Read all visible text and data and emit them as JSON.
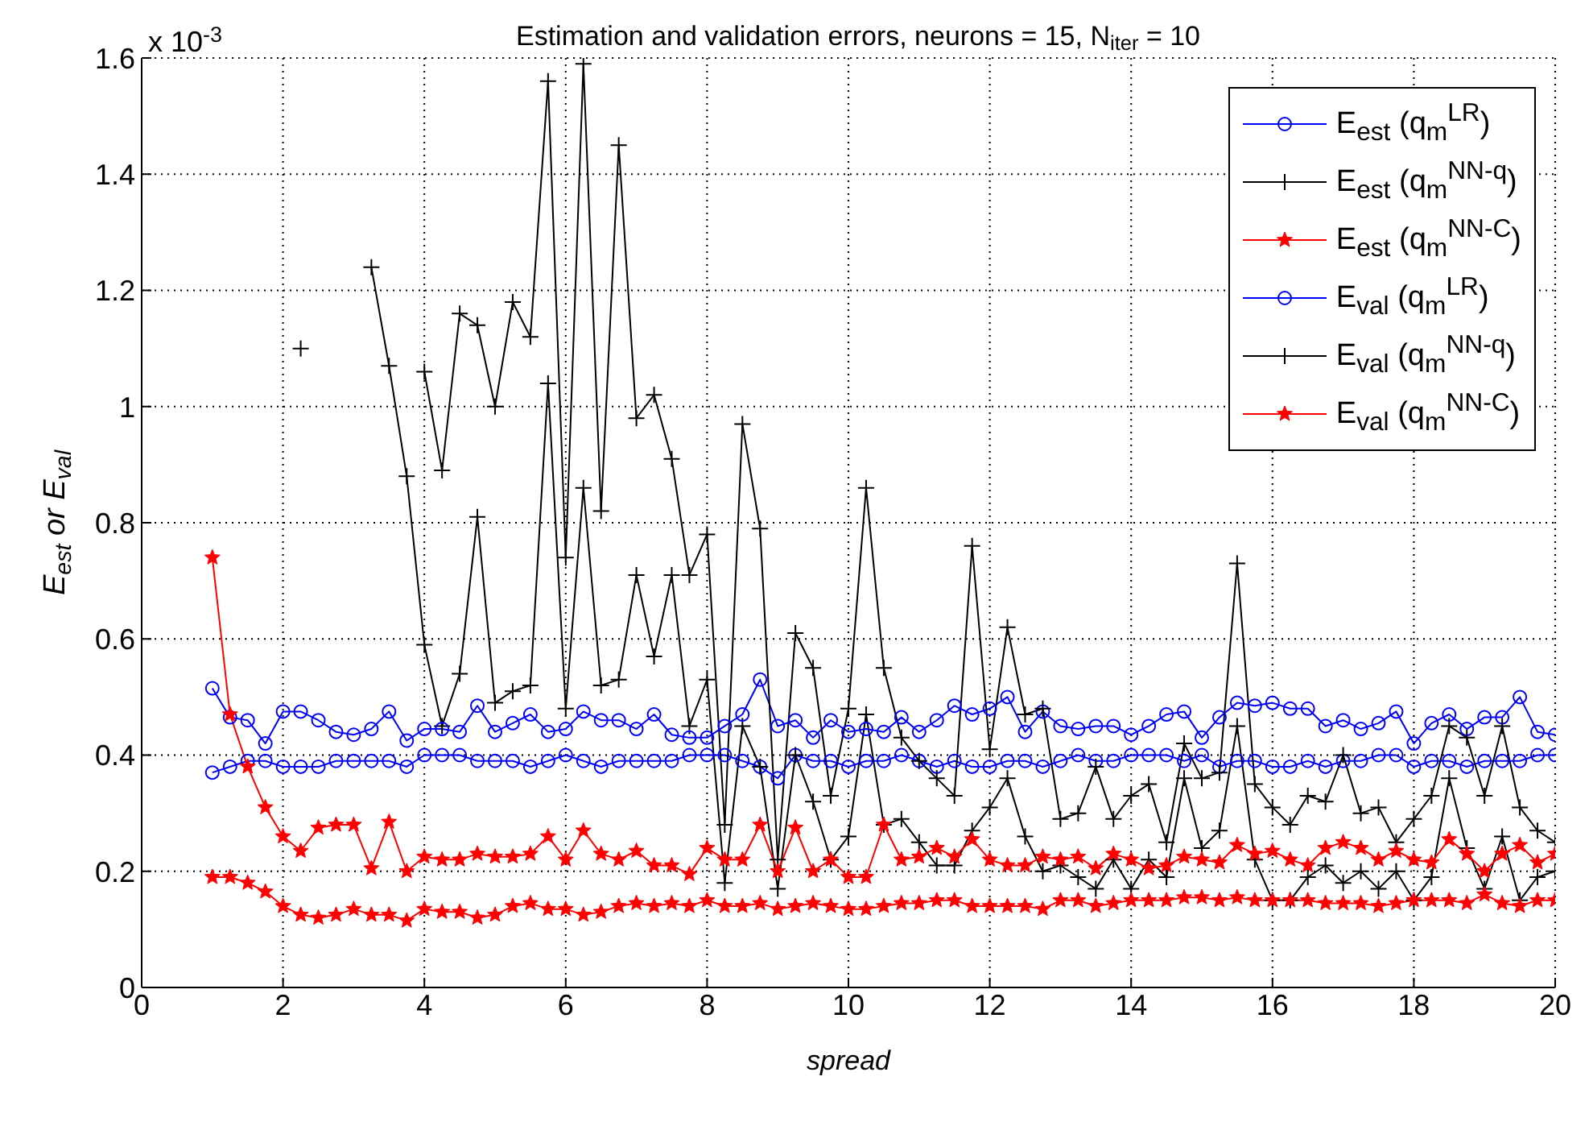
{
  "chart_data": {
    "type": "line",
    "title": "Estimation and validation errors, neurons = 15, N$_{iter}$ = 10",
    "xlabel": "spread",
    "ylabel": "E$_{est}$  or  E$_{val}$",
    "annotations": [
      "x 10$^{-3}$"
    ],
    "x": [
      1,
      1.25,
      1.5,
      1.75,
      2,
      2.25,
      2.5,
      2.75,
      3,
      3.25,
      3.5,
      3.75,
      4,
      4.25,
      4.5,
      4.75,
      5,
      5.25,
      5.5,
      5.75,
      6,
      6.25,
      6.5,
      6.75,
      7,
      7.25,
      7.5,
      7.75,
      8,
      8.25,
      8.5,
      8.75,
      9,
      9.25,
      9.5,
      9.75,
      10,
      10.25,
      10.5,
      10.75,
      11,
      11.25,
      11.5,
      11.75,
      12,
      12.25,
      12.5,
      12.75,
      13,
      13.25,
      13.5,
      13.75,
      14,
      14.25,
      14.5,
      14.75,
      15,
      15.25,
      15.5,
      15.75,
      16,
      16.25,
      16.5,
      16.75,
      17,
      17.25,
      17.5,
      17.75,
      18,
      18.25,
      18.5,
      18.75,
      19,
      19.25,
      19.5,
      19.75,
      20
    ],
    "xlim": [
      0,
      20
    ],
    "xticks": [
      0,
      2,
      4,
      6,
      8,
      10,
      12,
      14,
      16,
      18,
      20
    ],
    "ylim": [
      0,
      1.6
    ],
    "yticks": [
      0,
      0.2,
      0.4,
      0.6,
      0.8,
      1,
      1.2,
      1.4,
      1.6
    ],
    "grid": true,
    "legend": "top right",
    "series": [
      {
        "name": "E$_{est}$ (q$_{m}$$^{LR}$)",
        "color": "#0000ff",
        "marker": "circle",
        "values": [
          0.37,
          0.38,
          0.39,
          0.39,
          0.38,
          0.38,
          0.38,
          0.39,
          0.39,
          0.39,
          0.39,
          0.38,
          0.4,
          0.4,
          0.4,
          0.39,
          0.39,
          0.39,
          0.38,
          0.39,
          0.4,
          0.39,
          0.38,
          0.39,
          0.39,
          0.39,
          0.39,
          0.4,
          0.4,
          0.4,
          0.39,
          0.38,
          0.36,
          0.4,
          0.39,
          0.39,
          0.38,
          0.39,
          0.39,
          0.4,
          0.39,
          0.38,
          0.39,
          0.38,
          0.38,
          0.39,
          0.39,
          0.38,
          0.39,
          0.4,
          0.39,
          0.39,
          0.4,
          0.4,
          0.4,
          0.39,
          0.4,
          0.38,
          0.39,
          0.39,
          0.38,
          0.38,
          0.39,
          0.38,
          0.39,
          0.39,
          0.4,
          0.4,
          0.38,
          0.39,
          0.39,
          0.38,
          0.39,
          0.39,
          0.39,
          0.4,
          0.4
        ]
      },
      {
        "name": "E$_{est}$ (q$_{m}$$^{NN-q}$)",
        "color": "#000000",
        "marker": "cross",
        "values": [
          null,
          null,
          null,
          null,
          null,
          1.1,
          null,
          null,
          null,
          1.24,
          1.07,
          0.88,
          0.59,
          0.45,
          0.54,
          0.81,
          0.49,
          0.51,
          0.52,
          1.04,
          0.48,
          0.86,
          0.52,
          0.53,
          0.71,
          0.57,
          0.71,
          0.45,
          0.53,
          0.18,
          0.45,
          0.38,
          0.17,
          0.4,
          0.32,
          0.22,
          0.26,
          0.47,
          0.28,
          0.29,
          0.25,
          0.21,
          0.21,
          0.27,
          0.31,
          0.36,
          0.26,
          0.2,
          0.21,
          0.19,
          0.17,
          0.22,
          0.17,
          0.22,
          0.19,
          0.36,
          0.24,
          0.27,
          0.45,
          0.22,
          0.15,
          0.15,
          0.19,
          0.21,
          0.18,
          0.2,
          0.17,
          0.2,
          0.15,
          0.19,
          0.36,
          0.24,
          0.17,
          0.26,
          0.15,
          0.19,
          0.2
        ]
      },
      {
        "name": "E$_{est}$ (q$_{m}$$^{NN-C}$)",
        "color": "#ff0000",
        "marker": "star",
        "values": [
          0.19,
          0.19,
          0.18,
          0.165,
          0.14,
          0.125,
          0.12,
          0.125,
          0.135,
          0.125,
          0.125,
          0.115,
          0.135,
          0.13,
          0.13,
          0.12,
          0.125,
          0.14,
          0.145,
          0.135,
          0.135,
          0.125,
          0.13,
          0.14,
          0.145,
          0.14,
          0.145,
          0.14,
          0.15,
          0.14,
          0.14,
          0.145,
          0.135,
          0.14,
          0.145,
          0.14,
          0.135,
          0.135,
          0.14,
          0.145,
          0.145,
          0.15,
          0.15,
          0.14,
          0.14,
          0.14,
          0.14,
          0.135,
          0.15,
          0.15,
          0.14,
          0.145,
          0.15,
          0.15,
          0.15,
          0.155,
          0.155,
          0.15,
          0.155,
          0.15,
          0.15,
          0.15,
          0.15,
          0.145,
          0.145,
          0.145,
          0.14,
          0.145,
          0.15,
          0.15,
          0.15,
          0.145,
          0.16,
          0.145,
          0.14,
          0.15,
          0.15
        ]
      },
      {
        "name": "E$_{val}$ (q$_{m}$$^{LR}$)",
        "color": "#0000ff",
        "marker": "circle",
        "values": [
          0.515,
          0.465,
          0.46,
          0.42,
          0.475,
          0.475,
          0.46,
          0.44,
          0.435,
          0.445,
          0.475,
          0.425,
          0.445,
          0.445,
          0.44,
          0.485,
          0.44,
          0.455,
          0.47,
          0.44,
          0.445,
          0.475,
          0.46,
          0.46,
          0.445,
          0.47,
          0.435,
          0.43,
          0.43,
          0.45,
          0.47,
          0.53,
          0.45,
          0.46,
          0.43,
          0.46,
          0.44,
          0.445,
          0.44,
          0.465,
          0.44,
          0.46,
          0.485,
          0.47,
          0.48,
          0.5,
          0.44,
          0.475,
          0.45,
          0.445,
          0.45,
          0.45,
          0.435,
          0.45,
          0.47,
          0.475,
          0.43,
          0.465,
          0.49,
          0.485,
          0.49,
          0.48,
          0.48,
          0.45,
          0.46,
          0.445,
          0.455,
          0.475,
          0.42,
          0.455,
          0.47,
          0.445,
          0.465,
          0.465,
          0.5,
          0.44,
          0.435
        ]
      },
      {
        "name": "E$_{val}$ (q$_{m}$$^{NN-q}$)",
        "color": "#000000",
        "marker": "cross",
        "values": [
          null,
          null,
          null,
          null,
          null,
          null,
          null,
          null,
          null,
          null,
          null,
          null,
          1.06,
          0.89,
          1.16,
          1.14,
          1.0,
          1.18,
          1.12,
          1.56,
          0.74,
          1.59,
          0.82,
          1.45,
          0.98,
          1.02,
          0.91,
          0.71,
          0.78,
          0.28,
          0.97,
          0.79,
          0.22,
          0.61,
          0.55,
          0.33,
          0.48,
          0.86,
          0.55,
          0.43,
          0.39,
          0.36,
          0.33,
          0.76,
          0.41,
          0.62,
          0.47,
          0.48,
          0.29,
          0.3,
          0.38,
          0.29,
          0.33,
          0.35,
          0.25,
          0.42,
          0.36,
          0.37,
          0.73,
          0.35,
          0.31,
          0.28,
          0.33,
          0.32,
          0.4,
          0.3,
          0.31,
          0.25,
          0.29,
          0.33,
          0.45,
          0.43,
          0.33,
          0.45,
          0.31,
          0.27,
          0.25
        ]
      },
      {
        "name": "E$_{val}$ (q$_{m}$$^{NN-C}$)",
        "color": "#ff0000",
        "marker": "star",
        "values": [
          0.74,
          0.47,
          0.38,
          0.31,
          0.26,
          0.235,
          0.275,
          0.28,
          0.28,
          0.205,
          0.285,
          0.2,
          0.225,
          0.22,
          0.22,
          0.23,
          0.225,
          0.225,
          0.23,
          0.26,
          0.22,
          0.27,
          0.23,
          0.22,
          0.235,
          0.21,
          0.21,
          0.195,
          0.24,
          0.22,
          0.22,
          0.28,
          0.2,
          0.275,
          0.2,
          0.22,
          0.19,
          0.19,
          0.28,
          0.22,
          0.225,
          0.24,
          0.225,
          0.255,
          0.22,
          0.21,
          0.21,
          0.225,
          0.22,
          0.225,
          0.205,
          0.23,
          0.22,
          0.205,
          0.21,
          0.225,
          0.22,
          0.215,
          0.245,
          0.23,
          0.235,
          0.22,
          0.21,
          0.24,
          0.25,
          0.24,
          0.22,
          0.235,
          0.22,
          0.215,
          0.255,
          0.23,
          0.2,
          0.23,
          0.245,
          0.215,
          0.23
        ]
      }
    ]
  }
}
